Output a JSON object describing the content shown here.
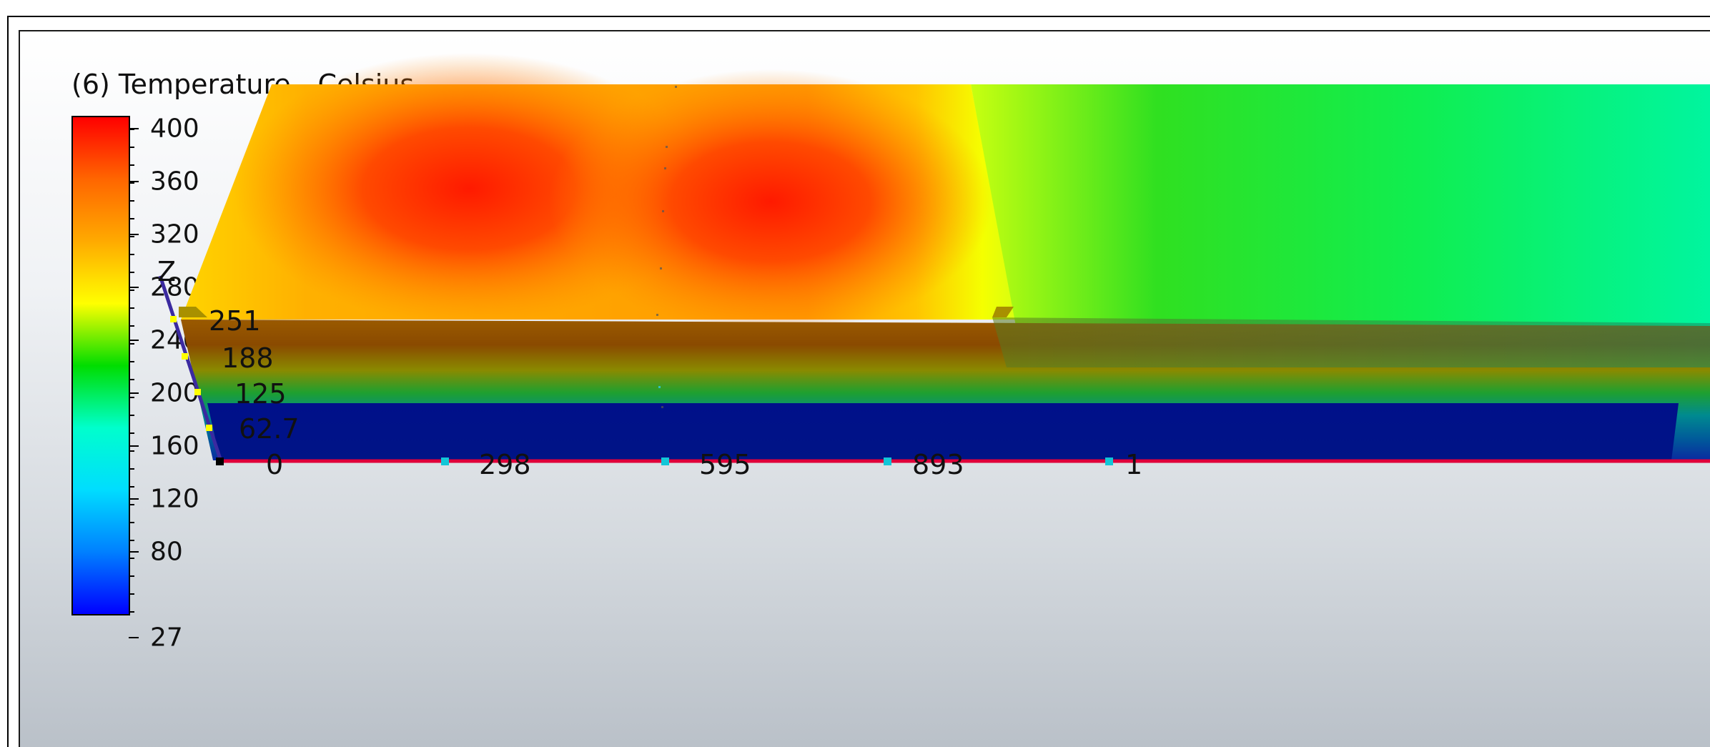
{
  "legend": {
    "title": "(6) Temperature - Celsius",
    "ticks": [
      "400",
      "360",
      "320",
      "280",
      "240",
      "200",
      "160",
      "120",
      "80",
      "27"
    ],
    "gradient": [
      "#ff0000",
      "#ff6600",
      "#ffaa00",
      "#ffff00",
      "#00dd00",
      "#00ffcc",
      "#00ddff",
      "#0080ff",
      "#0000ff"
    ]
  },
  "axes": {
    "z_label": "Z",
    "z_values": [
      "251",
      "188",
      "125",
      "62.7"
    ],
    "x_values": [
      "0",
      "298",
      "595",
      "893",
      "1"
    ]
  },
  "colors": {
    "top_face_base": "#ffb000",
    "hot_spot": "#ff2000",
    "cool_region": "#00ee66",
    "front_dark": "#8b4a00",
    "bottom_block": "#00148a",
    "axis_red": "#e0003a",
    "axis_blue": "#3b2aa0"
  }
}
